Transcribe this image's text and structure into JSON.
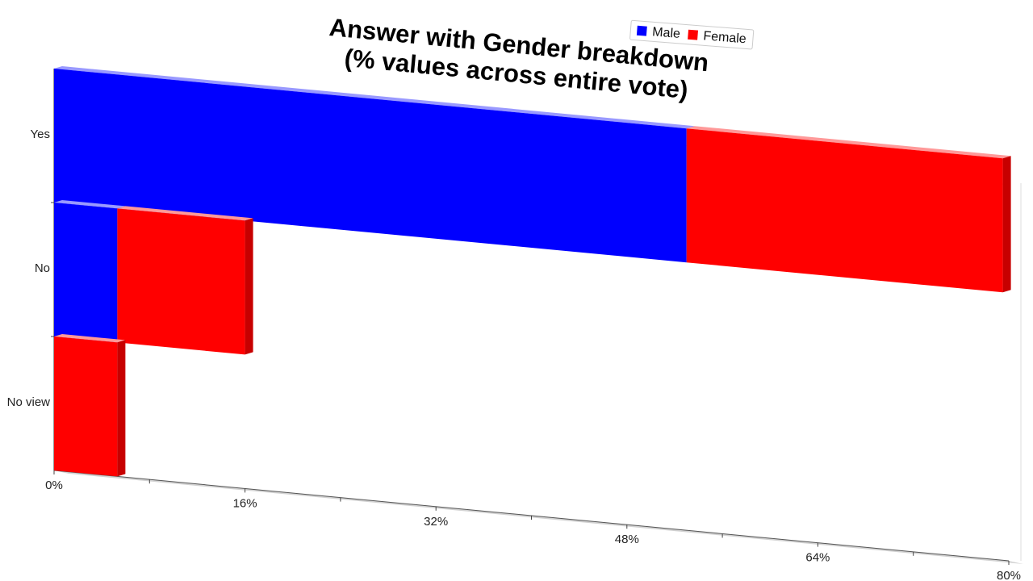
{
  "chart_data": {
    "type": "bar",
    "orientation": "horizontal",
    "stacked": true,
    "title": [
      "Answer with Gender breakdown",
      "(% values across entire vote)"
    ],
    "categories": [
      "Yes",
      "No",
      "No view"
    ],
    "series": [
      {
        "name": "Male",
        "color": "#0000ff",
        "values": [
          53,
          5.3,
          0
        ]
      },
      {
        "name": "Female",
        "color": "#ff0000",
        "values": [
          26.5,
          10.7,
          5.3
        ]
      }
    ],
    "xlim": [
      0,
      80
    ],
    "x_ticks": [
      "0%",
      "16%",
      "32%",
      "48%",
      "64%",
      "80%"
    ],
    "legend_position": "top-right",
    "grid": false
  }
}
